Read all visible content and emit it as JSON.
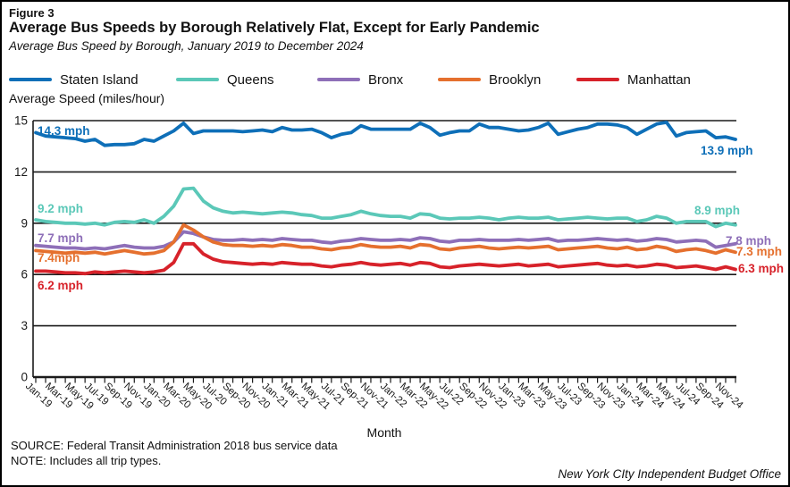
{
  "figure": {
    "label": "Figure 3",
    "title": "Average Bus Speeds by Borough Relatively Flat, Except for Early Pandemic",
    "subtitle": "Average Bus Speed by Borough, January 2019 to December 2024",
    "y_axis_title": "Average Speed (miles/hour)",
    "x_axis_title": "Month",
    "source": "SOURCE: Federal Transit Administration 2018 bus service data",
    "note": "NOTE: Includes all trip types.",
    "credit": "New York CIty Independent Budget Office"
  },
  "legend": [
    {
      "label": "Staten Island",
      "color": "#0e6fb8"
    },
    {
      "label": "Queens",
      "color": "#5bc8b8"
    },
    {
      "label": "Bronx",
      "color": "#8e6fb8"
    },
    {
      "label": "Brooklyn",
      "color": "#e5702e"
    },
    {
      "label": "Manhattan",
      "color": "#d7222a"
    }
  ],
  "chart_data": {
    "type": "line",
    "title": "Average Bus Speed by Borough, January 2019 to December 2024",
    "xlabel": "Month",
    "ylabel": "Average Speed (miles/hour)",
    "ylim": [
      0,
      15
    ],
    "yticks": [
      0,
      3,
      6,
      9,
      12,
      15
    ],
    "grid": true,
    "legend_position": "top",
    "x_tick_step": 2,
    "x": [
      "Jan-19",
      "Feb-19",
      "Mar-19",
      "Apr-19",
      "May-19",
      "Jun-19",
      "Jul-19",
      "Aug-19",
      "Sep-19",
      "Oct-19",
      "Nov-19",
      "Dec-19",
      "Jan-20",
      "Feb-20",
      "Mar-20",
      "Apr-20",
      "May-20",
      "Jun-20",
      "Jul-20",
      "Aug-20",
      "Sep-20",
      "Oct-20",
      "Nov-20",
      "Dec-20",
      "Jan-21",
      "Feb-21",
      "Mar-21",
      "Apr-21",
      "May-21",
      "Jun-21",
      "Jul-21",
      "Aug-21",
      "Sep-21",
      "Oct-21",
      "Nov-21",
      "Dec-21",
      "Jan-22",
      "Feb-22",
      "Mar-22",
      "Apr-22",
      "May-22",
      "Jun-22",
      "Jul-22",
      "Aug-22",
      "Sep-22",
      "Oct-22",
      "Nov-22",
      "Dec-22",
      "Jan-23",
      "Feb-23",
      "Mar-23",
      "Apr-23",
      "May-23",
      "Jun-23",
      "Jul-23",
      "Aug-23",
      "Sep-23",
      "Oct-23",
      "Nov-23",
      "Dec-23",
      "Jan-24",
      "Feb-24",
      "Mar-24",
      "Apr-24",
      "May-24",
      "Jun-24",
      "Jul-24",
      "Aug-24",
      "Sep-24",
      "Oct-24",
      "Nov-24",
      "Dec-24"
    ],
    "series": [
      {
        "name": "Staten Island",
        "color": "#0e6fb8",
        "start_label": "14.3 mph",
        "end_label": "13.9 mph",
        "values": [
          14.3,
          14.1,
          14.05,
          14.0,
          13.95,
          13.8,
          13.9,
          13.55,
          13.6,
          13.6,
          13.65,
          13.9,
          13.8,
          14.1,
          14.4,
          14.85,
          14.25,
          14.4,
          14.4,
          14.4,
          14.4,
          14.35,
          14.4,
          14.45,
          14.35,
          14.6,
          14.45,
          14.45,
          14.5,
          14.3,
          14.0,
          14.2,
          14.3,
          14.7,
          14.5,
          14.5,
          14.5,
          14.5,
          14.5,
          14.85,
          14.6,
          14.15,
          14.3,
          14.4,
          14.4,
          14.8,
          14.6,
          14.6,
          14.5,
          14.4,
          14.45,
          14.6,
          14.85,
          14.2,
          14.35,
          14.5,
          14.6,
          14.8,
          14.8,
          14.75,
          14.6,
          14.2,
          14.5,
          14.8,
          14.9,
          14.1,
          14.3,
          14.35,
          14.4,
          14.0,
          14.05,
          13.9
        ]
      },
      {
        "name": "Queens",
        "color": "#5bc8b8",
        "start_label": "9.2 mph",
        "end_label": "8.9 mph",
        "values": [
          9.2,
          9.1,
          9.05,
          9.0,
          9.0,
          8.95,
          9.0,
          8.9,
          9.05,
          9.1,
          9.05,
          9.2,
          9.0,
          9.4,
          10.0,
          11.0,
          11.05,
          10.3,
          9.9,
          9.7,
          9.6,
          9.65,
          9.6,
          9.55,
          9.6,
          9.65,
          9.6,
          9.5,
          9.45,
          9.3,
          9.3,
          9.4,
          9.5,
          9.7,
          9.55,
          9.45,
          9.4,
          9.4,
          9.3,
          9.55,
          9.5,
          9.3,
          9.25,
          9.3,
          9.3,
          9.35,
          9.3,
          9.2,
          9.3,
          9.35,
          9.3,
          9.3,
          9.35,
          9.2,
          9.25,
          9.3,
          9.35,
          9.3,
          9.25,
          9.3,
          9.3,
          9.1,
          9.2,
          9.4,
          9.3,
          9.0,
          9.1,
          9.1,
          9.1,
          8.8,
          9.0,
          8.9
        ]
      },
      {
        "name": "Bronx",
        "color": "#8e6fb8",
        "start_label": "7.7 mph",
        "end_label": "7.8 mph",
        "values": [
          7.7,
          7.65,
          7.6,
          7.55,
          7.55,
          7.5,
          7.55,
          7.5,
          7.6,
          7.7,
          7.6,
          7.55,
          7.55,
          7.65,
          7.9,
          8.5,
          8.4,
          8.2,
          8.05,
          8.0,
          8.0,
          8.05,
          8.0,
          8.05,
          8.0,
          8.1,
          8.05,
          8.0,
          8.0,
          7.9,
          7.85,
          7.95,
          8.0,
          8.1,
          8.05,
          8.0,
          8.0,
          8.05,
          8.0,
          8.15,
          8.1,
          7.95,
          7.9,
          8.0,
          8.0,
          8.05,
          8.0,
          8.0,
          8.0,
          8.05,
          8.0,
          8.05,
          8.1,
          7.95,
          8.0,
          8.0,
          8.05,
          8.1,
          8.05,
          8.0,
          8.05,
          7.95,
          8.0,
          8.1,
          8.05,
          7.9,
          7.95,
          8.0,
          7.95,
          7.6,
          7.7,
          7.8
        ]
      },
      {
        "name": "Brooklyn",
        "color": "#e5702e",
        "start_label": "7.4mph",
        "end_label": "7.3 mph",
        "values": [
          7.4,
          7.35,
          7.3,
          7.25,
          7.3,
          7.25,
          7.3,
          7.2,
          7.3,
          7.4,
          7.3,
          7.2,
          7.25,
          7.4,
          7.9,
          8.9,
          8.6,
          8.2,
          7.9,
          7.75,
          7.7,
          7.7,
          7.65,
          7.7,
          7.65,
          7.75,
          7.7,
          7.6,
          7.6,
          7.5,
          7.45,
          7.55,
          7.6,
          7.75,
          7.65,
          7.6,
          7.6,
          7.65,
          7.55,
          7.75,
          7.7,
          7.5,
          7.45,
          7.55,
          7.6,
          7.65,
          7.55,
          7.5,
          7.55,
          7.6,
          7.55,
          7.6,
          7.65,
          7.45,
          7.5,
          7.55,
          7.6,
          7.65,
          7.55,
          7.5,
          7.6,
          7.45,
          7.5,
          7.65,
          7.55,
          7.35,
          7.45,
          7.5,
          7.4,
          7.25,
          7.45,
          7.3
        ]
      },
      {
        "name": "Manhattan",
        "color": "#d7222a",
        "start_label": "6.2 mph",
        "end_label": "6.3 mph",
        "values": [
          6.2,
          6.2,
          6.15,
          6.1,
          6.1,
          6.05,
          6.15,
          6.1,
          6.15,
          6.2,
          6.15,
          6.1,
          6.15,
          6.25,
          6.7,
          7.8,
          7.8,
          7.2,
          6.9,
          6.75,
          6.7,
          6.65,
          6.6,
          6.65,
          6.6,
          6.7,
          6.65,
          6.6,
          6.6,
          6.5,
          6.45,
          6.55,
          6.6,
          6.7,
          6.6,
          6.55,
          6.6,
          6.65,
          6.55,
          6.7,
          6.65,
          6.45,
          6.4,
          6.5,
          6.55,
          6.6,
          6.55,
          6.5,
          6.55,
          6.6,
          6.5,
          6.55,
          6.6,
          6.45,
          6.5,
          6.55,
          6.6,
          6.65,
          6.55,
          6.5,
          6.55,
          6.45,
          6.5,
          6.6,
          6.55,
          6.4,
          6.45,
          6.5,
          6.4,
          6.3,
          6.45,
          6.3
        ]
      }
    ]
  }
}
